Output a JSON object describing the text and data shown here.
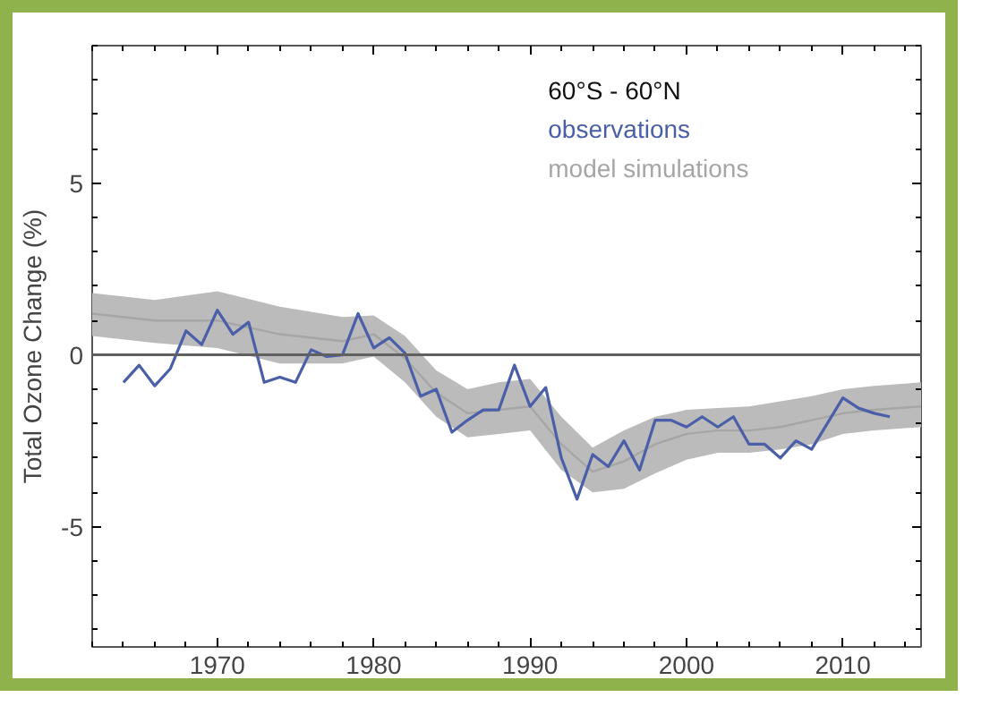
{
  "chart_data": {
    "type": "line",
    "ylabel": "Total Ozone Change (%)",
    "legend_title": "60°S - 60°N",
    "xlim": [
      1962,
      2015
    ],
    "xticks": [
      1970,
      1980,
      1990,
      2000,
      2010
    ],
    "ylim": [
      -8.5,
      9
    ],
    "yticks": [
      -5,
      0,
      5
    ],
    "grid": false,
    "legend": "top right",
    "marker": "none",
    "line_style": "solid",
    "ref_lines": [
      {
        "axis": "y",
        "value": 0,
        "color": "#606060"
      }
    ],
    "series": [
      {
        "name": "model simulations",
        "type": "line",
        "color": "#a6a6a6",
        "values": [
          1.2,
          1.0,
          1.0,
          0.6,
          0.4,
          0.6,
          -0.1,
          -1.1,
          -1.7,
          -1.6,
          -1.5,
          -2.6,
          -3.4,
          -3.1,
          -2.6,
          -2.3,
          -2.2,
          -2.2,
          -2.1,
          -1.9,
          -1.7,
          -1.6,
          -1.5
        ],
        "x": [
          1962,
          1966,
          1970,
          1974,
          1978,
          1980,
          1982,
          1984,
          1986,
          1988,
          1990,
          1992,
          1994,
          1996,
          1998,
          2000,
          2002,
          2004,
          2006,
          2008,
          2010,
          2012,
          2015
        ],
        "lower": [
          0.55,
          0.35,
          0.2,
          -0.25,
          -0.25,
          -0.05,
          -0.8,
          -1.8,
          -2.4,
          -2.3,
          -2.2,
          -3.35,
          -4.0,
          -3.9,
          -3.45,
          -3.05,
          -2.85,
          -2.85,
          -2.75,
          -2.6,
          -2.3,
          -2.2,
          -2.1
        ],
        "upper": [
          1.8,
          1.6,
          1.85,
          1.4,
          1.1,
          1.15,
          0.55,
          -0.45,
          -1.0,
          -0.8,
          -0.7,
          -1.8,
          -2.7,
          -2.2,
          -1.8,
          -1.6,
          -1.55,
          -1.5,
          -1.35,
          -1.2,
          -1.0,
          -0.9,
          -0.8
        ]
      },
      {
        "name": "observations",
        "type": "line",
        "color": "#4a5fa8",
        "x": [
          1964,
          1965,
          1966,
          1967,
          1968,
          1969,
          1970,
          1971,
          1972,
          1973,
          1974,
          1975,
          1976,
          1977,
          1978,
          1979,
          1980,
          1981,
          1982,
          1983,
          1984,
          1985,
          1986,
          1987,
          1988,
          1989,
          1990,
          1991,
          1992,
          1993,
          1994,
          1995,
          1996,
          1997,
          1998,
          1999,
          2000,
          2001,
          2002,
          2003,
          2004,
          2005,
          2006,
          2007,
          2008,
          2009,
          2010,
          2011,
          2012,
          2013
        ],
        "values": [
          -0.8,
          -0.3,
          -0.9,
          -0.4,
          0.7,
          0.3,
          1.3,
          0.6,
          0.95,
          -0.8,
          -0.65,
          -0.8,
          0.15,
          -0.05,
          0.0,
          1.2,
          0.2,
          0.5,
          0.05,
          -1.2,
          -1.0,
          -2.25,
          -1.9,
          -1.6,
          -1.6,
          -0.3,
          -1.5,
          -0.95,
          -3.0,
          -4.2,
          -2.9,
          -3.25,
          -2.5,
          -3.35,
          -1.9,
          -1.9,
          -2.1,
          -1.8,
          -2.1,
          -1.8,
          -2.6,
          -2.6,
          -3.0,
          -2.5,
          -2.75,
          -2.0,
          -1.25,
          -1.55,
          -1.7,
          -1.8
        ]
      }
    ]
  }
}
